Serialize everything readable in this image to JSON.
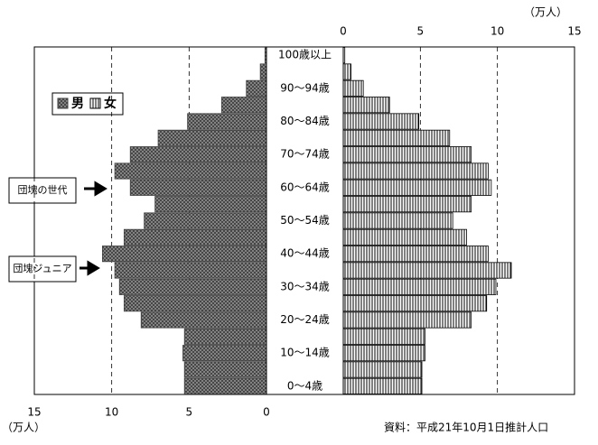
{
  "chart_data": {
    "type": "population_pyramid",
    "unit": "（万人）",
    "source": "資料：平成21年10月1日推計人口",
    "categories": [
      "0～4歳",
      null,
      "10～14歳",
      null,
      "20～24歳",
      null,
      "30～34歳",
      null,
      "40～44歳",
      null,
      "50～54歳",
      null,
      "60～64歳",
      null,
      "70～74歳",
      null,
      "80～84歳",
      null,
      "90～94歳",
      null,
      "100歳以上"
    ],
    "series": [
      {
        "name": "男",
        "color": "#404040",
        "values": [
          5.3,
          5.3,
          5.4,
          5.3,
          8.1,
          9.2,
          9.5,
          9.8,
          10.6,
          9.2,
          7.9,
          7.2,
          8.8,
          9.8,
          8.8,
          7.0,
          5.1,
          2.9,
          1.3,
          0.4,
          0.1
        ]
      },
      {
        "name": "女",
        "color": "#000000",
        "values": [
          5.1,
          5.1,
          5.3,
          5.3,
          8.3,
          9.3,
          9.9,
          10.9,
          9.4,
          8.0,
          7.1,
          8.3,
          9.6,
          9.4,
          8.3,
          6.9,
          4.9,
          3.0,
          1.3,
          0.5,
          0.1
        ]
      }
    ],
    "xlim": [
      0,
      15
    ],
    "xticks": [
      0,
      5,
      10,
      15
    ],
    "grid": true,
    "annotations": [
      "団塊の世代",
      "団塊ジュニア"
    ]
  }
}
